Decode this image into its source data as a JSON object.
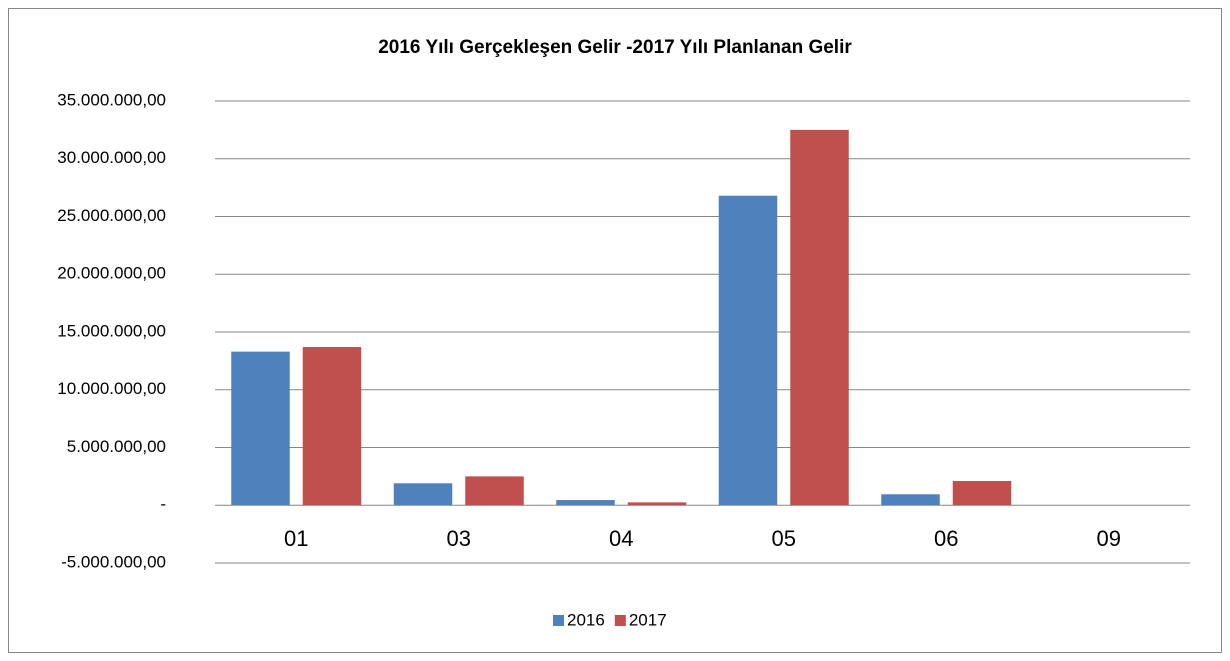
{
  "chart_data": {
    "type": "bar",
    "title": "2016 Yılı Gerçekleşen Gelir -2017 Yılı Planlanan Gelir",
    "categories": [
      "01",
      "03",
      "04",
      "05",
      "06",
      "09"
    ],
    "series": [
      {
        "name": "2016",
        "color": "#4f81bd",
        "values": [
          13300000,
          1900000,
          450000,
          26800000,
          950000,
          0
        ]
      },
      {
        "name": "2017",
        "color": "#c0504d",
        "values": [
          13700000,
          2500000,
          250000,
          32500000,
          2100000,
          0
        ]
      }
    ],
    "ylim": [
      -5000000,
      35000000
    ],
    "yticks": [
      {
        "value": -5000000,
        "label": "-5.000.000,00"
      },
      {
        "value": 0,
        "label": "-"
      },
      {
        "value": 5000000,
        "label": "5.000.000,00"
      },
      {
        "value": 10000000,
        "label": "10.000.000,00"
      },
      {
        "value": 15000000,
        "label": "15.000.000,00"
      },
      {
        "value": 20000000,
        "label": "20.000.000,00"
      },
      {
        "value": 25000000,
        "label": "25.000.000,00"
      },
      {
        "value": 30000000,
        "label": "30.000.000,00"
      },
      {
        "value": 35000000,
        "label": "35.000.000,00"
      }
    ],
    "grid": true,
    "legend": "bottom"
  }
}
